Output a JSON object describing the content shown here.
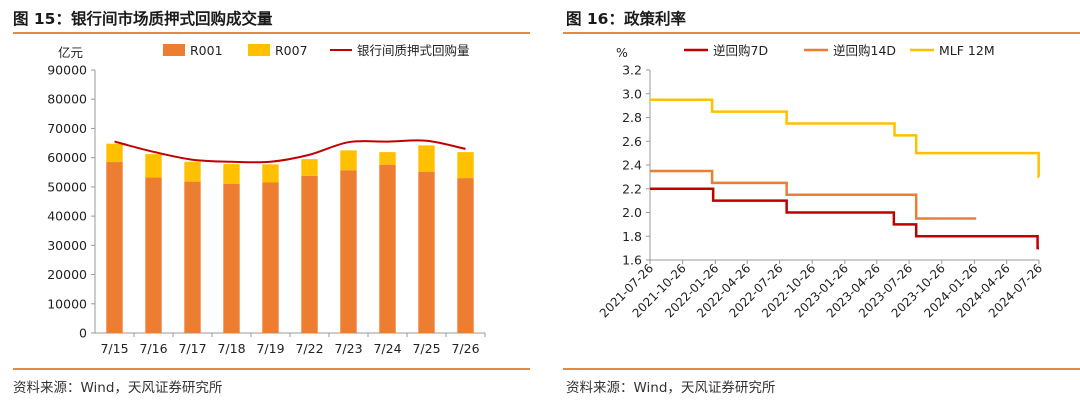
{
  "left": {
    "figure_title": "图 15：银行间市场质押式回购成交量",
    "source": "资料来源：Wind，天风证券研究所",
    "accent_color": "#e58a3c"
  },
  "right": {
    "figure_title": "图 16：政策利率",
    "source": "资料来源：Wind，天风证券研究所",
    "accent_color": "#e58a3c"
  },
  "chart_data": [
    {
      "type": "bar",
      "stacked": true,
      "unit": "亿元",
      "categories": [
        "7/15",
        "7/16",
        "7/17",
        "7/18",
        "7/19",
        "7/22",
        "7/23",
        "7/24",
        "7/25",
        "7/26"
      ],
      "series": [
        {
          "name": "R001",
          "kind": "bar",
          "color": "#ed7d31",
          "values": [
            58500,
            53200,
            51800,
            51000,
            51500,
            53800,
            55700,
            57600,
            55200,
            53000
          ]
        },
        {
          "name": "R007",
          "kind": "bar",
          "color": "#ffc000",
          "values": [
            6300,
            8000,
            6800,
            6800,
            6200,
            5700,
            6800,
            4300,
            9000,
            8900
          ]
        },
        {
          "name": "银行间质押式回购量",
          "kind": "line",
          "color": "#c00000",
          "values": [
            65500,
            62000,
            59300,
            58600,
            58600,
            61000,
            65300,
            65500,
            65800,
            63000
          ]
        }
      ],
      "ylim": [
        0,
        90000
      ],
      "yticks": [
        0,
        10000,
        20000,
        30000,
        40000,
        50000,
        60000,
        70000,
        80000,
        90000
      ],
      "legend": "top"
    },
    {
      "type": "line",
      "step": true,
      "unit": "%",
      "x_tick_labels": [
        "2021-07-26",
        "2021-10-26",
        "2022-01-26",
        "2022-04-26",
        "2022-07-26",
        "2022-10-26",
        "2023-01-26",
        "2023-04-26",
        "2023-07-26",
        "2023-10-26",
        "2024-01-26",
        "2024-04-26",
        "2024-07-26"
      ],
      "ylim": [
        1.6,
        3.2
      ],
      "yticks": [
        1.6,
        1.8,
        2.0,
        2.2,
        2.4,
        2.6,
        2.8,
        3.0,
        3.2
      ],
      "legend": "top",
      "series": [
        {
          "name": "逆回购7D",
          "color": "#c00000",
          "points": [
            [
              "2021-07-26",
              2.2
            ],
            [
              "2022-01-20",
              2.1
            ],
            [
              "2022-08-15",
              2.0
            ],
            [
              "2023-06-13",
              1.9
            ],
            [
              "2023-08-15",
              1.8
            ],
            [
              "2024-07-22",
              1.7
            ],
            [
              "2024-07-26",
              1.7
            ]
          ]
        },
        {
          "name": "逆回购14D",
          "color": "#ed7d31",
          "points": [
            [
              "2021-07-26",
              2.35
            ],
            [
              "2022-01-17",
              2.25
            ],
            [
              "2022-08-15",
              2.15
            ],
            [
              "2023-08-15",
              1.95
            ],
            [
              "2024-01-31",
              1.95
            ]
          ]
        },
        {
          "name": "MLF 12M",
          "color": "#ffc000",
          "points": [
            [
              "2021-07-26",
              2.95
            ],
            [
              "2022-01-17",
              2.85
            ],
            [
              "2022-08-15",
              2.75
            ],
            [
              "2023-06-15",
              2.65
            ],
            [
              "2023-08-15",
              2.5
            ],
            [
              "2024-07-25",
              2.3
            ],
            [
              "2024-07-26",
              2.3
            ]
          ]
        }
      ]
    }
  ]
}
